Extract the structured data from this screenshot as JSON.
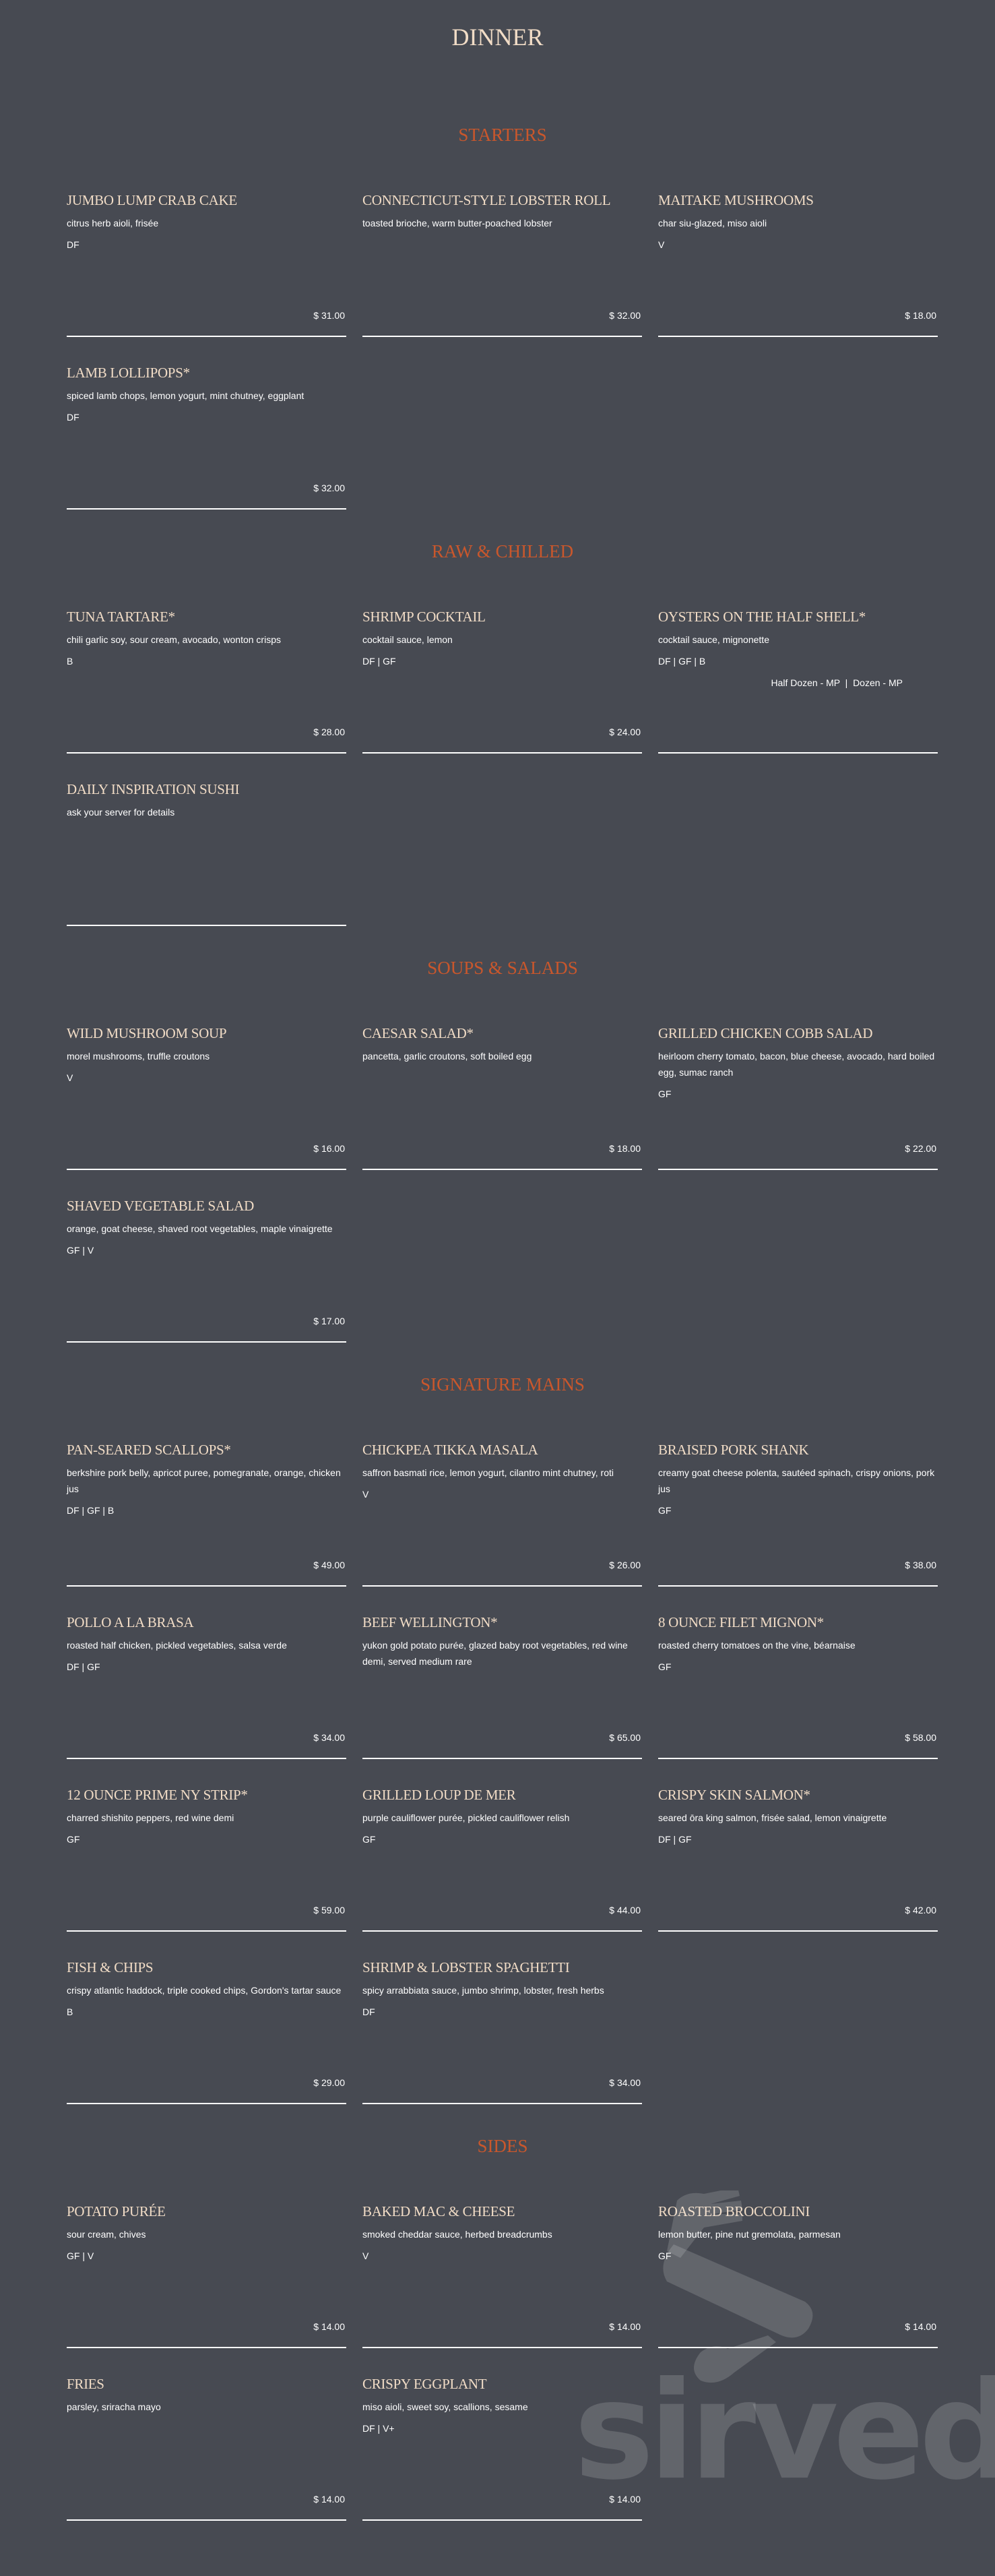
{
  "page": {
    "title": "DINNER"
  },
  "colors": {
    "background": "#474a52",
    "item_name": "#f1dcc6",
    "section_title": "#c9572c",
    "text": "#ffffff"
  },
  "sections": [
    {
      "title": "STARTERS",
      "items": [
        {
          "name": "JUMBO LUMP CRAB CAKE",
          "desc": "citrus herb aioli, frisée",
          "tags": "DF",
          "price": "$ 31.00"
        },
        {
          "name": "CONNECTICUT-STYLE LOBSTER ROLL",
          "desc": "toasted brioche, warm butter-poached lobster",
          "tags": "",
          "price": "$ 32.00"
        },
        {
          "name": "MAITAKE MUSHROOMS",
          "desc": "char siu-glazed, miso aioli",
          "tags": "V",
          "price": "$ 18.00"
        },
        {
          "name": "LAMB LOLLIPOPS*",
          "desc": "spiced lamb chops, lemon yogurt, mint chutney, eggplant",
          "tags": "DF",
          "price": "$ 32.00"
        }
      ]
    },
    {
      "title": "RAW & CHILLED",
      "items": [
        {
          "name": "TUNA TARTARE*",
          "desc": "chili garlic soy, sour cream, avocado, wonton crisps",
          "tags": "B",
          "price": "$ 28.00"
        },
        {
          "name": "SHRIMP COCKTAIL",
          "desc": "cocktail sauce, lemon",
          "tags": "DF | GF",
          "price": "$ 24.00"
        },
        {
          "name": "OYSTERS ON THE HALF SHELL*",
          "desc": "cocktail sauce, mignonette",
          "tags": "DF | GF | B",
          "extra": "Half Dozen - MP  |  Dozen - MP",
          "price": ""
        },
        {
          "name": "DAILY INSPIRATION SUSHI",
          "desc": "ask your server for details",
          "tags": "",
          "price": ""
        }
      ]
    },
    {
      "title": "SOUPS & SALADS",
      "items": [
        {
          "name": "WILD MUSHROOM SOUP",
          "desc": "morel mushrooms, truffle croutons",
          "tags": "V",
          "price": "$ 16.00"
        },
        {
          "name": "CAESAR SALAD*",
          "desc": "pancetta, garlic croutons, soft boiled egg",
          "tags": "",
          "price": "$ 18.00"
        },
        {
          "name": "GRILLED CHICKEN COBB SALAD",
          "desc": "heirloom cherry tomato, bacon, blue cheese, avocado, hard boiled egg, sumac ranch",
          "tags": "GF",
          "price": "$ 22.00"
        },
        {
          "name": "SHAVED VEGETABLE SALAD",
          "desc": "orange, goat cheese, shaved root vegetables, maple vinaigrette",
          "tags": "GF | V",
          "price": "$ 17.00"
        }
      ]
    },
    {
      "title": "SIGNATURE MAINS",
      "items": [
        {
          "name": "PAN-SEARED SCALLOPS*",
          "desc": "berkshire pork belly, apricot puree, pomegranate, orange, chicken jus",
          "tags": "DF | GF | B",
          "price": "$ 49.00"
        },
        {
          "name": "CHICKPEA TIKKA MASALA",
          "desc": "saffron basmati rice, lemon yogurt, cilantro mint chutney, roti",
          "tags": "V",
          "price": "$ 26.00"
        },
        {
          "name": "BRAISED PORK SHANK",
          "desc": "creamy goat cheese polenta, sautéed spinach, crispy onions, pork jus",
          "tags": "GF",
          "price": "$ 38.00"
        },
        {
          "name": "POLLO A LA BRASA",
          "desc": "roasted half chicken, pickled vegetables, salsa verde",
          "tags": "DF | GF",
          "price": "$ 34.00"
        },
        {
          "name": "BEEF WELLINGTON*",
          "desc": "yukon gold potato purée, glazed baby root vegetables, red wine demi, served medium rare",
          "tags": "",
          "price": "$ 65.00"
        },
        {
          "name": "8 OUNCE FILET MIGNON*",
          "desc": "roasted cherry tomatoes on the vine, béarnaise",
          "tags": "GF",
          "price": "$ 58.00"
        },
        {
          "name": "12 OUNCE PRIME NY STRIP*",
          "desc": "charred shishito peppers, red wine demi",
          "tags": "GF",
          "price": "$ 59.00"
        },
        {
          "name": "GRILLED LOUP DE MER",
          "desc": "purple cauliflower purée, pickled cauliflower relish",
          "tags": "GF",
          "price": "$ 44.00"
        },
        {
          "name": "CRISPY SKIN SALMON*",
          "desc": "seared ōra king salmon, frisée salad, lemon vinaigrette",
          "tags": "DF | GF",
          "price": "$ 42.00"
        },
        {
          "name": "FISH & CHIPS",
          "desc": "crispy atlantic haddock, triple cooked chips, Gordon's tartar sauce",
          "tags": "B",
          "price": "$ 29.00"
        },
        {
          "name": "SHRIMP & LOBSTER SPAGHETTI",
          "desc": "spicy arrabbiata sauce, jumbo shrimp, lobster, fresh herbs",
          "tags": "DF",
          "price": "$ 34.00"
        }
      ]
    },
    {
      "title": "SIDES",
      "items": [
        {
          "name": "POTATO PURÉE",
          "desc": "sour cream, chives",
          "tags": "GF | V",
          "price": "$ 14.00"
        },
        {
          "name": "BAKED MAC & CHEESE",
          "desc": "smoked cheddar sauce, herbed breadcrumbs",
          "tags": "V",
          "price": "$ 14.00"
        },
        {
          "name": "ROASTED BROCCOLINI",
          "desc": "lemon butter, pine nut gremolata, parmesan",
          "tags": "GF",
          "price": "$ 14.00"
        },
        {
          "name": "FRIES",
          "desc": "parsley, sriracha mayo",
          "tags": "",
          "price": "$ 14.00"
        },
        {
          "name": "CRISPY EGGPLANT",
          "desc": "miso aioli, sweet soy, scallions, sesame",
          "tags": "DF | V+",
          "price": "$ 14.00"
        }
      ]
    }
  ],
  "watermark": {
    "text": "sirved",
    "icon": "fork-knife-spoon-icon"
  }
}
